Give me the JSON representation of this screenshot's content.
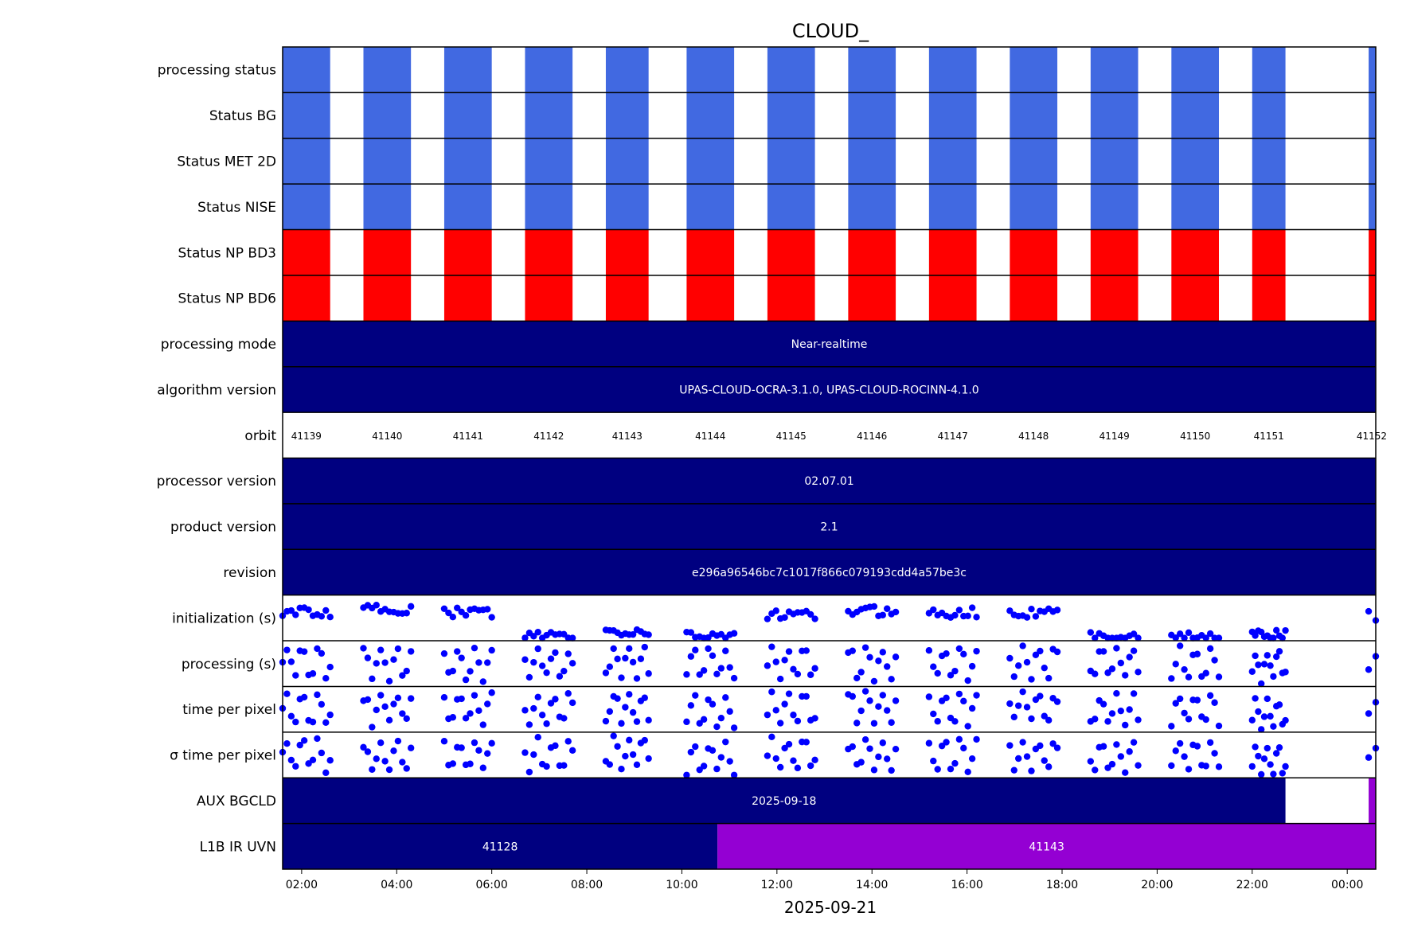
{
  "chart_data": {
    "type": "timeline",
    "title": "CLOUD_",
    "xlabel": "2025-09-21",
    "x_range_hours": [
      1.6,
      24.6
    ],
    "x_ticks": [
      {
        "hour": 2,
        "label": "02:00"
      },
      {
        "hour": 4,
        "label": "04:00"
      },
      {
        "hour": 6,
        "label": "06:00"
      },
      {
        "hour": 8,
        "label": "08:00"
      },
      {
        "hour": 10,
        "label": "10:00"
      },
      {
        "hour": 12,
        "label": "12:00"
      },
      {
        "hour": 14,
        "label": "14:00"
      },
      {
        "hour": 16,
        "label": "16:00"
      },
      {
        "hour": 18,
        "label": "18:00"
      },
      {
        "hour": 20,
        "label": "20:00"
      },
      {
        "hour": 22,
        "label": "22:00"
      },
      {
        "hour": 24,
        "label": "00:00"
      }
    ],
    "colors": {
      "status_blue": "#4169e1",
      "status_red": "#ff0000",
      "band_navy": "#000080",
      "band_purple": "#9400d3",
      "dots": "#0000ff"
    },
    "granules_hours": [
      [
        1.6,
        2.6
      ],
      [
        3.3,
        4.3
      ],
      [
        5.0,
        6.0
      ],
      [
        6.7,
        7.7
      ],
      [
        8.4,
        9.3
      ],
      [
        10.1,
        11.1
      ],
      [
        11.8,
        12.8
      ],
      [
        13.5,
        14.5
      ],
      [
        15.2,
        16.2
      ],
      [
        16.9,
        17.9
      ],
      [
        18.6,
        19.6
      ],
      [
        20.3,
        21.3
      ],
      [
        22.0,
        22.7
      ],
      [
        24.45,
        24.6
      ]
    ],
    "rows": [
      {
        "label": "processing status",
        "kind": "status",
        "color": "status_blue"
      },
      {
        "label": "Status BG",
        "kind": "status",
        "color": "status_blue"
      },
      {
        "label": "Status MET 2D",
        "kind": "status",
        "color": "status_blue"
      },
      {
        "label": "Status NISE",
        "kind": "status",
        "color": "status_blue"
      },
      {
        "label": "Status NP BD3",
        "kind": "status",
        "color": "status_red"
      },
      {
        "label": "Status NP BD6",
        "kind": "status",
        "color": "status_red"
      },
      {
        "label": "processing mode",
        "kind": "band",
        "segments": [
          {
            "from": 1.6,
            "to": 24.6,
            "text": "Near-realtime",
            "color": "band_navy"
          }
        ]
      },
      {
        "label": "algorithm version",
        "kind": "band",
        "segments": [
          {
            "from": 1.6,
            "to": 24.6,
            "text": "UPAS-CLOUD-OCRA-3.1.0, UPAS-CLOUD-ROCINN-4.1.0",
            "color": "band_navy"
          }
        ]
      },
      {
        "label": "orbit",
        "kind": "orbit",
        "orbits": [
          {
            "hour": 2.1,
            "text": "41139"
          },
          {
            "hour": 3.8,
            "text": "41140"
          },
          {
            "hour": 5.5,
            "text": "41141"
          },
          {
            "hour": 7.2,
            "text": "41142"
          },
          {
            "hour": 8.85,
            "text": "41143"
          },
          {
            "hour": 10.6,
            "text": "41144"
          },
          {
            "hour": 12.3,
            "text": "41145"
          },
          {
            "hour": 14.0,
            "text": "41146"
          },
          {
            "hour": 15.7,
            "text": "41147"
          },
          {
            "hour": 17.4,
            "text": "41148"
          },
          {
            "hour": 19.1,
            "text": "41149"
          },
          {
            "hour": 20.8,
            "text": "41150"
          },
          {
            "hour": 22.35,
            "text": "41151"
          },
          {
            "hour": 24.6,
            "text": "41152"
          }
        ]
      },
      {
        "label": "processor version",
        "kind": "band",
        "segments": [
          {
            "from": 1.6,
            "to": 24.6,
            "text": "02.07.01",
            "color": "band_navy"
          }
        ]
      },
      {
        "label": "product version",
        "kind": "band",
        "segments": [
          {
            "from": 1.6,
            "to": 24.6,
            "text": "2.1",
            "color": "band_navy"
          }
        ]
      },
      {
        "label": "revision",
        "kind": "band",
        "segments": [
          {
            "from": 1.6,
            "to": 24.6,
            "text": "e296a96546bc7c1017f866c079193cdd4a57be3c",
            "color": "band_navy"
          }
        ]
      },
      {
        "label": "initialization (s)",
        "kind": "scatter",
        "levels": [
          0.62,
          0.68,
          0.62,
          0.1,
          0.18,
          0.12,
          0.55,
          0.65,
          0.62,
          0.62,
          0.1,
          0.08,
          0.12,
          0.55
        ]
      },
      {
        "label": "processing (s)",
        "kind": "scatter",
        "levels": [
          0.55,
          0.5,
          0.5,
          0.5,
          0.55,
          0.5,
          0.5,
          0.5,
          0.5,
          0.5,
          0.5,
          0.5,
          0.45,
          0.3
        ]
      },
      {
        "label": "time per pixel",
        "kind": "scatter",
        "levels": [
          0.5,
          0.5,
          0.5,
          0.5,
          0.55,
          0.45,
          0.5,
          0.55,
          0.5,
          0.55,
          0.45,
          0.5,
          0.4,
          0.3
        ]
      },
      {
        "label": "σ time per pixel",
        "kind": "scatter",
        "levels": [
          0.5,
          0.45,
          0.5,
          0.5,
          0.55,
          0.45,
          0.5,
          0.5,
          0.5,
          0.5,
          0.45,
          0.5,
          0.4,
          0.3
        ]
      },
      {
        "label": "AUX BGCLD",
        "kind": "band",
        "segments": [
          {
            "from": 1.6,
            "to": 22.7,
            "text": "2025-09-18",
            "color": "band_navy"
          },
          {
            "from": 24.45,
            "to": 24.6,
            "text": "",
            "color": "band_purple"
          }
        ]
      },
      {
        "label": "L1B IR UVN",
        "kind": "band",
        "segments": [
          {
            "from": 1.6,
            "to": 10.75,
            "text": "41128",
            "color": "band_navy"
          },
          {
            "from": 10.75,
            "to": 24.6,
            "text": "41143",
            "color": "band_purple"
          }
        ]
      }
    ]
  }
}
